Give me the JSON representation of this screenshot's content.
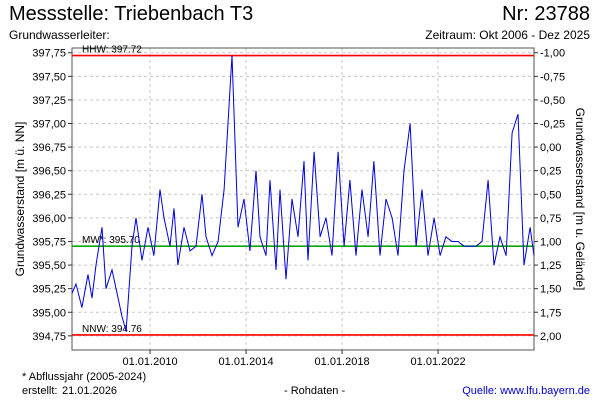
{
  "header": {
    "title": "Messstelle: Triebenbach T3",
    "number": "Nr: 23788",
    "aquifer": "Grundwasserleiter:",
    "period": "Zeitraum: Okt 2006 - Dez 2025"
  },
  "footer": {
    "footnote": "* Abflussjahr (2005-2024)",
    "created_label": "erstellt:",
    "created_date": "21.01.2026",
    "data_type": "- Rohdaten -",
    "source": "Quelle: www.lfu.bayern.de"
  },
  "colors": {
    "series": "#0000dd",
    "extreme_lines": "#ff0000",
    "mean_line": "#00aa00",
    "grid": "#c8c8c8",
    "source_link": "#0000cc"
  },
  "chart_data": {
    "type": "line",
    "xlabel": "",
    "ylabel": "Grundwasserstand [m ü. NN]",
    "y2label": "Grundwasserstand [m u. Gelände]",
    "xlim": [
      "2006-10-01",
      "2025-12-31"
    ],
    "x_ticks": [
      "01.01.2010",
      "01.01.2014",
      "01.01.2018",
      "01.01.2022"
    ],
    "ylim": [
      394.6,
      397.8
    ],
    "y_ticks": [
      "397,75",
      "397,50",
      "397,25",
      "397,00",
      "396,75",
      "396,50",
      "396,25",
      "396,00",
      "395,75",
      "395,50",
      "395,25",
      "395,00",
      "394,75"
    ],
    "y2_ticks": [
      "-1,00",
      "-0,75",
      "-0,50",
      "-0,25",
      "0,00",
      "0,25",
      "0,50",
      "0,75",
      "1,00",
      "1,25",
      "1,50",
      "1,75",
      "2,00"
    ],
    "y2_range_at_ylim": [
      2.15,
      -1.05
    ],
    "grid": true,
    "reference_lines": [
      {
        "label": "HHW: 397.72",
        "value": 397.72,
        "color": "#ff0000"
      },
      {
        "label": "MW*: 395.70",
        "value": 395.7,
        "color": "#00aa00"
      },
      {
        "label": "NNW: 394.76",
        "value": 394.76,
        "color": "#ff0000"
      }
    ],
    "series": [
      {
        "x": [
          "2006-10-01",
          "2006-12-01",
          "2007-03-01",
          "2007-06-01",
          "2007-08-01",
          "2007-10-01",
          "2008-01-01",
          "2008-03-01",
          "2008-06-01",
          "2008-09-01",
          "2008-11-01",
          "2009-01-01",
          "2009-04-01",
          "2009-06-01",
          "2009-09-01",
          "2009-12-01",
          "2010-03-01",
          "2010-06-01",
          "2010-08-01",
          "2010-11-01",
          "2011-01-01",
          "2011-03-01",
          "2011-06-01",
          "2011-09-01",
          "2011-12-01",
          "2012-03-01",
          "2012-05-01",
          "2012-08-01",
          "2012-11-01",
          "2013-02-01",
          "2013-06-01",
          "2013-09-01",
          "2013-12-01",
          "2014-03-01",
          "2014-06-01",
          "2014-08-01",
          "2014-11-01",
          "2015-01-01",
          "2015-04-01",
          "2015-06-01",
          "2015-09-01",
          "2015-12-01",
          "2016-03-01",
          "2016-06-01",
          "2016-08-01",
          "2016-11-01",
          "2017-02-01",
          "2017-05-01",
          "2017-08-01",
          "2017-11-01",
          "2018-02-01",
          "2018-05-01",
          "2018-08-01",
          "2018-11-01",
          "2019-02-01",
          "2019-05-01",
          "2019-08-01",
          "2019-11-01",
          "2020-02-01",
          "2020-05-01",
          "2020-08-01",
          "2020-11-01",
          "2021-02-01",
          "2021-05-01",
          "2021-08-01",
          "2021-11-01",
          "2022-02-01",
          "2022-05-01",
          "2022-08-01",
          "2022-11-01",
          "2023-02-01",
          "2023-05-01",
          "2023-08-01",
          "2023-11-01",
          "2024-02-01",
          "2024-05-01",
          "2024-08-01",
          "2024-11-01",
          "2025-02-01",
          "2025-05-01",
          "2025-08-01",
          "2025-11-01",
          "2025-12-31"
        ],
        "y": [
          395.2,
          395.3,
          395.05,
          395.4,
          395.15,
          395.5,
          395.9,
          395.25,
          395.45,
          395.15,
          394.95,
          394.8,
          395.7,
          396.0,
          395.55,
          395.9,
          395.6,
          396.3,
          396.0,
          395.7,
          396.1,
          395.5,
          395.9,
          395.65,
          395.7,
          396.25,
          395.8,
          395.6,
          395.75,
          396.3,
          397.72,
          395.9,
          396.2,
          395.65,
          396.5,
          395.8,
          395.6,
          396.4,
          395.45,
          396.3,
          395.35,
          396.2,
          395.8,
          396.6,
          395.55,
          396.7,
          395.8,
          396.0,
          395.6,
          396.7,
          395.7,
          396.4,
          395.6,
          396.3,
          395.8,
          396.6,
          395.6,
          396.2,
          396.0,
          395.6,
          396.5,
          397.0,
          395.7,
          396.3,
          395.6,
          396.0,
          395.6,
          395.8,
          395.75,
          395.75,
          395.7,
          395.7,
          395.7,
          395.75,
          396.4,
          395.5,
          395.8,
          395.6,
          396.9,
          397.1,
          395.5,
          395.9,
          395.6
        ]
      }
    ]
  }
}
